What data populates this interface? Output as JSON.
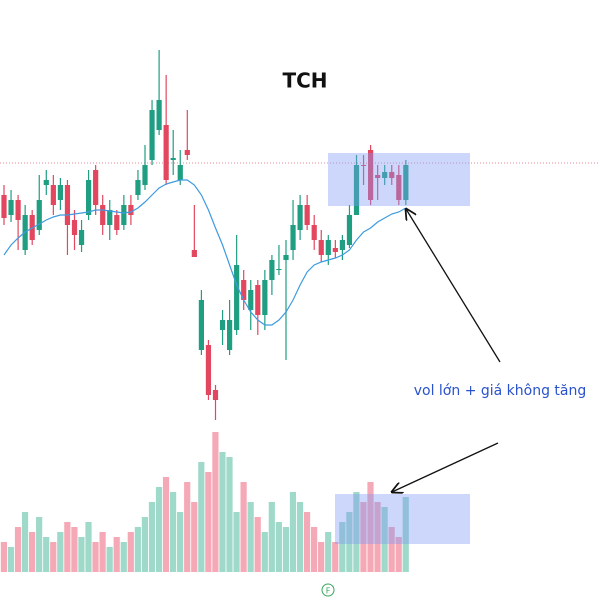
{
  "chart_data": {
    "type": "candlestick",
    "title": "TCH",
    "annotation": "vol lớn + giá không tăng",
    "marker_label": "F",
    "open": [
      255,
      235,
      250,
      200,
      235,
      220,
      265,
      265,
      250,
      265,
      230,
      205,
      235,
      280,
      245,
      225,
      235,
      225,
      245,
      255,
      265,
      290,
      320,
      325,
      290,
      270,
      300,
      200,
      100,
      105,
      60,
      120,
      100,
      120,
      170,
      140,
      165,
      135,
      170,
      180,
      190,
      200,
      220,
      245,
      225,
      210,
      195,
      202,
      200,
      205,
      235,
      285,
      300,
      275,
      272,
      278,
      275,
      250
    ],
    "high": [
      265,
      260,
      255,
      245,
      240,
      275,
      280,
      275,
      272,
      270,
      240,
      230,
      280,
      285,
      255,
      250,
      240,
      255,
      255,
      280,
      305,
      350,
      400,
      375,
      320,
      300,
      340,
      245,
      160,
      110,
      65,
      140,
      150,
      215,
      180,
      170,
      170,
      180,
      195,
      205,
      210,
      250,
      255,
      255,
      235,
      220,
      215,
      210,
      215,
      245,
      295,
      295,
      305,
      285,
      285,
      285,
      285,
      290
    ],
    "low": [
      225,
      228,
      200,
      195,
      205,
      215,
      255,
      235,
      240,
      195,
      200,
      198,
      230,
      235,
      215,
      210,
      215,
      220,
      225,
      250,
      260,
      285,
      315,
      265,
      275,
      265,
      290,
      193,
      95,
      50,
      30,
      105,
      95,
      115,
      140,
      120,
      115,
      120,
      155,
      175,
      90,
      190,
      210,
      220,
      200,
      188,
      185,
      192,
      190,
      202,
      235,
      265,
      245,
      250,
      265,
      265,
      245,
      245
    ],
    "close": [
      232,
      250,
      230,
      235,
      210,
      250,
      270,
      245,
      265,
      225,
      215,
      220,
      270,
      245,
      225,
      240,
      220,
      245,
      235,
      270,
      285,
      340,
      350,
      270,
      292,
      285,
      295,
      193,
      150,
      55,
      50,
      130,
      130,
      185,
      150,
      160,
      135,
      170,
      190,
      181,
      195,
      225,
      245,
      225,
      210,
      195,
      210,
      198,
      210,
      235,
      285,
      284,
      250,
      272,
      278,
      272,
      250,
      285
    ],
    "volume": [
      30,
      25,
      45,
      60,
      40,
      55,
      35,
      30,
      40,
      50,
      45,
      35,
      50,
      30,
      40,
      25,
      35,
      30,
      40,
      45,
      55,
      70,
      85,
      95,
      80,
      60,
      90,
      70,
      110,
      100,
      140,
      120,
      115,
      60,
      90,
      70,
      55,
      40,
      70,
      50,
      45,
      80,
      70,
      60,
      45,
      30,
      40,
      30,
      50,
      60,
      80,
      70,
      90,
      70,
      65,
      45,
      35,
      75
    ],
    "ma": [
      195,
      205,
      212,
      218,
      222,
      226,
      230,
      233,
      235,
      235,
      236,
      237,
      238,
      240,
      240,
      239,
      238,
      237,
      238,
      242,
      248,
      255,
      262,
      266,
      268,
      270,
      270,
      265,
      255,
      240,
      222,
      205,
      185,
      165,
      150,
      138,
      130,
      125,
      125,
      130,
      138,
      150,
      165,
      178,
      185,
      188,
      190,
      192,
      195,
      200,
      210,
      218,
      222,
      228,
      232,
      236,
      238,
      242
    ],
    "price_line": 287,
    "ylim": [
      0,
      450
    ],
    "vlim": [
      0,
      160
    ],
    "up_color": "#1f9e82",
    "down_color": "#e2475f",
    "vol_up_color": "#9fd9c9",
    "vol_down_color": "#f5a9b6",
    "ma_color": "#3d9be0"
  }
}
